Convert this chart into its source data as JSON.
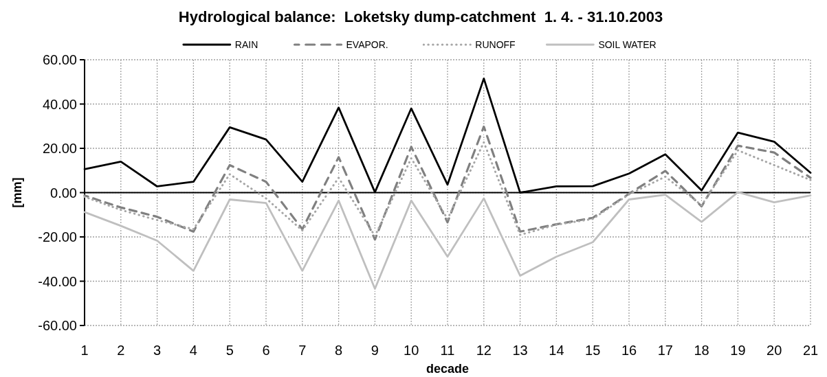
{
  "chart_data": {
    "type": "line",
    "title": "Hydrological balance:  Loketsky dump-catchment  1. 4. - 31.10.2003",
    "xlabel": "decade",
    "ylabel": "[mm]",
    "categories": [
      "1",
      "2",
      "3",
      "4",
      "5",
      "6",
      "7",
      "8",
      "9",
      "10",
      "11",
      "12",
      "13",
      "14",
      "15",
      "16",
      "17",
      "18",
      "19",
      "20",
      "21"
    ],
    "series": [
      {
        "name": "RAIN",
        "color": "#000000",
        "line_style": "solid",
        "values": [
          10.6,
          14.0,
          2.8,
          4.9,
          29.5,
          24.0,
          4.9,
          38.4,
          0.2,
          38.0,
          3.6,
          51.5,
          0.0,
          2.8,
          2.9,
          8.6,
          17.3,
          1.0,
          27.1,
          23.0,
          9.0
        ]
      },
      {
        "name": "EVAPOR.",
        "color": "#808080",
        "line_style": "dashed",
        "values": [
          -1.3,
          -6.7,
          -10.9,
          -17.6,
          12.4,
          4.9,
          -16.5,
          16.0,
          -21.2,
          20.7,
          -13.4,
          29.8,
          -17.6,
          -14.3,
          -11.4,
          -0.5,
          9.8,
          -6.2,
          21.2,
          18.1,
          6.7
        ]
      },
      {
        "name": "RUNOFF",
        "color": "#a6a6a6",
        "line_style": "dotted",
        "values": [
          -1.9,
          -7.8,
          -12.4,
          -16.5,
          8.3,
          -2.6,
          -17.1,
          6.7,
          -19.6,
          15.5,
          -11.9,
          22.7,
          -19.1,
          -14.5,
          -11.9,
          -0.8,
          7.2,
          -5.7,
          19.1,
          12.4,
          5.7
        ]
      },
      {
        "name": "SOIL WATER",
        "color": "#bfbfbf",
        "line_style": "solid",
        "values": [
          -8.8,
          -15.0,
          -21.7,
          -35.3,
          -3.1,
          -4.7,
          -35.3,
          -3.6,
          -43.4,
          -3.6,
          -28.9,
          -2.6,
          -37.5,
          -28.9,
          -22.4,
          -3.1,
          -1.0,
          -13.2,
          0.2,
          -4.4,
          -1.3
        ]
      }
    ],
    "ylim": [
      -60,
      60
    ],
    "yticks": [
      {
        "value": -60,
        "label": "-60.00"
      },
      {
        "value": -40,
        "label": "-40.00"
      },
      {
        "value": -20,
        "label": "-20.00"
      },
      {
        "value": 0,
        "label": "0.00"
      },
      {
        "value": 20,
        "label": "20.00"
      },
      {
        "value": 40,
        "label": "40.00"
      },
      {
        "value": 60,
        "label": "60.00"
      }
    ],
    "grid": true,
    "legend": "top"
  }
}
